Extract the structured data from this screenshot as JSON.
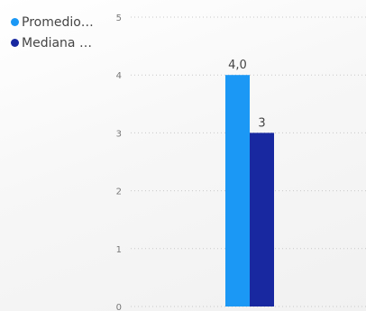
{
  "colors": {
    "series_1": "#1b98f5",
    "series_2": "#1828a0",
    "gridline": "#c8c8c8",
    "axis_text": "#777777"
  },
  "legend": {
    "items": [
      {
        "label": "Promedio…",
        "color": "#1b98f5"
      },
      {
        "label": "Mediana …",
        "color": "#1828a0"
      }
    ]
  },
  "chart_data": {
    "type": "bar",
    "title": "",
    "xlabel": "",
    "ylabel": "",
    "categories": [
      ""
    ],
    "series": [
      {
        "name": "Promedio…",
        "values": [
          4.0
        ],
        "data_labels": [
          "4,0"
        ],
        "color": "#1b98f5"
      },
      {
        "name": "Mediana …",
        "values": [
          3
        ],
        "data_labels": [
          "3"
        ],
        "color": "#1828a0"
      }
    ],
    "ylim": [
      0,
      5
    ],
    "yticks": [
      "0",
      "1",
      "2",
      "3",
      "4",
      "5"
    ],
    "grid": true,
    "legend_position": "top-left"
  }
}
